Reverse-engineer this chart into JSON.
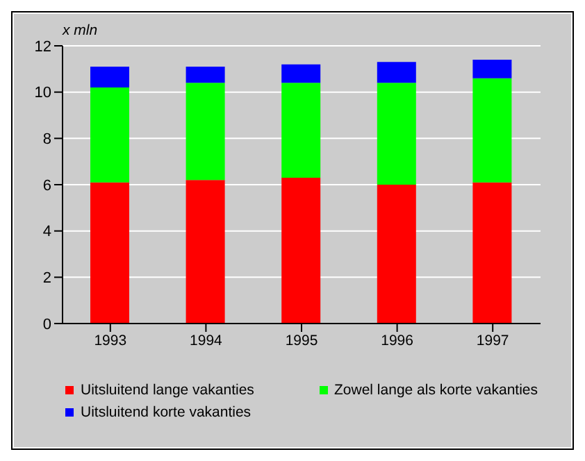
{
  "chart_data": {
    "type": "bar",
    "stacked": true,
    "ylabel": "x mln",
    "categories": [
      "1993",
      "1994",
      "1995",
      "1996",
      "1997"
    ],
    "series": [
      {
        "name": "Uitsluitend lange vakanties",
        "color": "#ff0000",
        "values": [
          6.1,
          6.2,
          6.3,
          6.0,
          6.1
        ]
      },
      {
        "name": "Zowel lange als korte vakanties",
        "color": "#00ff00",
        "values": [
          4.1,
          4.2,
          4.1,
          4.4,
          4.5
        ]
      },
      {
        "name": "Uitsluitend korte vakanties",
        "color": "#0000ff",
        "values": [
          0.9,
          0.7,
          0.8,
          0.9,
          0.8
        ]
      }
    ],
    "ylim": [
      0,
      12
    ],
    "yticks": [
      0,
      2,
      4,
      6,
      8,
      10,
      12
    ],
    "grid": "y",
    "legend": "bottom"
  }
}
